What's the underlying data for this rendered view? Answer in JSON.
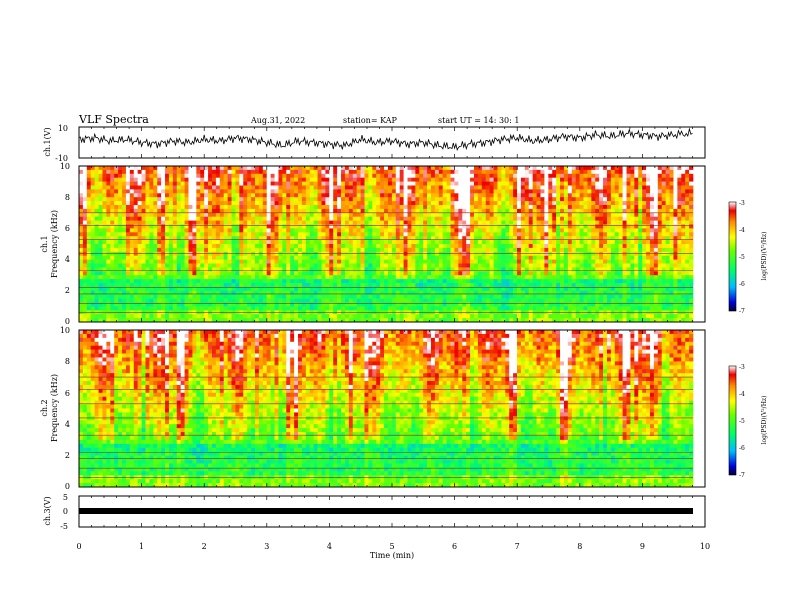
{
  "header": {
    "title": "VLF Spectra",
    "date": "Aug.31, 2022",
    "station": "station= KAP",
    "start": "start  UT =   14: 30: 1"
  },
  "chart_data": [
    {
      "type": "line",
      "panel": "ch1-waveform",
      "ylabel": "ch.1(V)",
      "ylim": [
        -10,
        10
      ],
      "yticks": [
        "10",
        "-10"
      ],
      "xlim": [
        0,
        10
      ],
      "x": [
        0,
        0.25,
        0.5,
        0.75,
        1.0,
        1.25,
        1.5,
        1.75,
        2.0,
        2.25,
        2.5,
        2.75,
        3.0,
        3.25,
        3.5,
        3.75,
        4.0,
        4.25,
        4.5,
        4.75,
        5.0,
        5.25,
        5.5,
        5.75,
        6.0,
        6.25,
        6.5,
        6.75,
        7.0,
        7.25,
        7.5,
        7.75,
        8.0,
        8.25,
        8.5,
        8.75,
        9.0,
        9.25,
        9.5,
        9.8
      ],
      "values": [
        2,
        3,
        1,
        2,
        0,
        -1,
        1,
        0,
        2,
        1,
        3,
        2,
        0,
        -2,
        1,
        0,
        -1,
        -2,
        2,
        0,
        1,
        -1,
        0,
        -2,
        -3,
        -1,
        0,
        2,
        3,
        1,
        2,
        4,
        3,
        5,
        4,
        6,
        5,
        4,
        5,
        6
      ]
    },
    {
      "type": "heatmap",
      "panel": "ch1-spectrogram",
      "ylabel": "ch.1\nFrequency (kHz)",
      "ylim": [
        0,
        10
      ],
      "yticks": [
        "0",
        "2",
        "4",
        "6",
        "8",
        "10"
      ],
      "xlim": [
        0,
        10
      ],
      "colorbar": {
        "label": "log(PSD)(V²/Hz)",
        "range": [
          -7,
          -3
        ],
        "ticks": [
          "-3",
          "-4",
          "-5",
          "-6",
          "-7"
        ]
      }
    },
    {
      "type": "heatmap",
      "panel": "ch2-spectrogram",
      "ylabel": "ch.2\nFrequency (kHz)",
      "ylim": [
        0,
        10
      ],
      "yticks": [
        "0",
        "2",
        "4",
        "6",
        "8",
        "10"
      ],
      "xlim": [
        0,
        10
      ],
      "colorbar": {
        "label": "log(PSD)(V²/Hz)",
        "range": [
          -7,
          -3
        ],
        "ticks": [
          "-3",
          "-4",
          "-5",
          "-6",
          "-7"
        ]
      }
    },
    {
      "type": "line",
      "panel": "ch3-waveform",
      "ylabel": "ch.3(V)",
      "ylim": [
        -5,
        5
      ],
      "yticks": [
        "5",
        "0",
        "-5"
      ],
      "xlim": [
        0,
        10
      ],
      "x": [
        0,
        9.8
      ],
      "values": [
        0,
        0
      ]
    }
  ],
  "xaxis": {
    "label": "Time (min)",
    "ticks": [
      "0",
      "1",
      "2",
      "3",
      "4",
      "5",
      "6",
      "7",
      "8",
      "9",
      "10"
    ]
  }
}
